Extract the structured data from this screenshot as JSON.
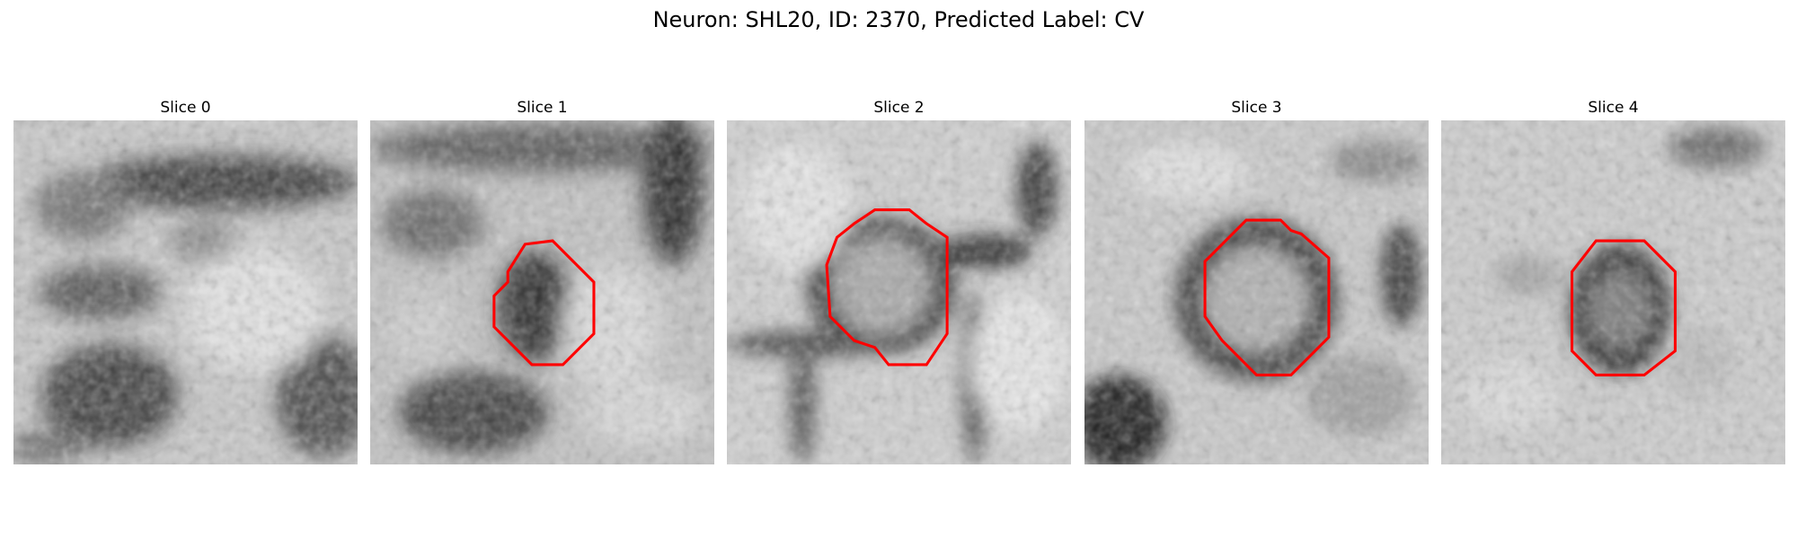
{
  "figure": {
    "title": "Neuron: SHL20, ID: 2370, Predicted Label: CV"
  },
  "panels": [
    {
      "title": "Slice 0",
      "has_contour": false
    },
    {
      "title": "Slice 1",
      "has_contour": true
    },
    {
      "title": "Slice 2",
      "has_contour": true
    },
    {
      "title": "Slice 3",
      "has_contour": true
    },
    {
      "title": "Slice 4",
      "has_contour": true
    }
  ],
  "colors": {
    "contour": "#ff0000",
    "background": "#ffffff",
    "text": "#000000"
  }
}
